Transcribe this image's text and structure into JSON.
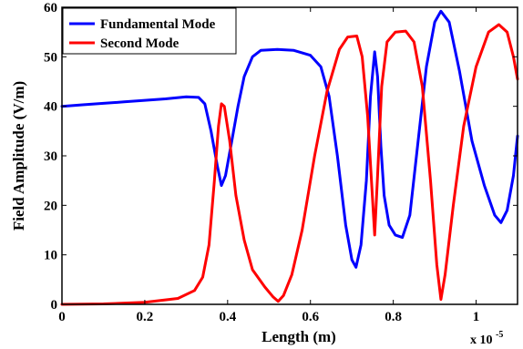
{
  "chart_data": {
    "type": "line",
    "title": "",
    "xlabel": "Length (m)",
    "ylabel": "Field Amplitude (V/m)",
    "x_multiplier": "x 10",
    "x_multiplier_exp": "-5",
    "xlim": [
      0,
      1.1
    ],
    "ylim": [
      0,
      60
    ],
    "x_ticks": [
      0,
      0.2,
      0.4,
      0.6,
      0.8,
      1
    ],
    "x_tick_labels": [
      "0",
      "0.2",
      "0.4",
      "0.6",
      "0.8",
      "1"
    ],
    "y_ticks": [
      0,
      10,
      20,
      30,
      40,
      50,
      60
    ],
    "y_tick_labels": [
      "0",
      "10",
      "20",
      "30",
      "40",
      "50",
      "60"
    ],
    "grid": false,
    "legend_position": "top-left",
    "series": [
      {
        "name": "Fundamental Mode",
        "color": "#0000ff",
        "points": [
          [
            0.0,
            40.0
          ],
          [
            0.05,
            40.3
          ],
          [
            0.1,
            40.6
          ],
          [
            0.15,
            40.9
          ],
          [
            0.2,
            41.2
          ],
          [
            0.25,
            41.5
          ],
          [
            0.3,
            41.9
          ],
          [
            0.33,
            41.8
          ],
          [
            0.345,
            40.5
          ],
          [
            0.36,
            35.0
          ],
          [
            0.375,
            28.0
          ],
          [
            0.385,
            24.0
          ],
          [
            0.395,
            26.0
          ],
          [
            0.41,
            33.0
          ],
          [
            0.425,
            40.0
          ],
          [
            0.44,
            46.0
          ],
          [
            0.46,
            50.0
          ],
          [
            0.48,
            51.3
          ],
          [
            0.52,
            51.5
          ],
          [
            0.56,
            51.3
          ],
          [
            0.6,
            50.3
          ],
          [
            0.625,
            48.0
          ],
          [
            0.645,
            42.0
          ],
          [
            0.665,
            30.0
          ],
          [
            0.685,
            16.0
          ],
          [
            0.7,
            9.0
          ],
          [
            0.71,
            7.5
          ],
          [
            0.722,
            12.0
          ],
          [
            0.735,
            25.0
          ],
          [
            0.745,
            42.0
          ],
          [
            0.755,
            51.0
          ],
          [
            0.762,
            46.0
          ],
          [
            0.77,
            32.0
          ],
          [
            0.778,
            22.0
          ],
          [
            0.79,
            16.0
          ],
          [
            0.805,
            14.0
          ],
          [
            0.822,
            13.5
          ],
          [
            0.84,
            18.0
          ],
          [
            0.86,
            33.0
          ],
          [
            0.88,
            48.0
          ],
          [
            0.9,
            57.0
          ],
          [
            0.915,
            59.2
          ],
          [
            0.935,
            57.0
          ],
          [
            0.96,
            47.0
          ],
          [
            0.99,
            33.0
          ],
          [
            1.02,
            24.0
          ],
          [
            1.045,
            18.0
          ],
          [
            1.06,
            16.5
          ],
          [
            1.075,
            19.0
          ],
          [
            1.09,
            26.0
          ],
          [
            1.1,
            34.0
          ]
        ]
      },
      {
        "name": "Second Mode",
        "color": "#ff0000",
        "points": [
          [
            0.0,
            0.0
          ],
          [
            0.1,
            0.1
          ],
          [
            0.2,
            0.4
          ],
          [
            0.28,
            1.2
          ],
          [
            0.32,
            2.8
          ],
          [
            0.34,
            5.5
          ],
          [
            0.355,
            12.0
          ],
          [
            0.368,
            25.0
          ],
          [
            0.378,
            36.0
          ],
          [
            0.385,
            40.5
          ],
          [
            0.392,
            40.0
          ],
          [
            0.405,
            33.0
          ],
          [
            0.42,
            22.0
          ],
          [
            0.44,
            13.0
          ],
          [
            0.46,
            7.0
          ],
          [
            0.49,
            3.5
          ],
          [
            0.51,
            1.5
          ],
          [
            0.522,
            0.6
          ],
          [
            0.535,
            1.8
          ],
          [
            0.555,
            6.0
          ],
          [
            0.58,
            15.0
          ],
          [
            0.61,
            30.0
          ],
          [
            0.64,
            43.0
          ],
          [
            0.67,
            51.5
          ],
          [
            0.69,
            54.0
          ],
          [
            0.712,
            54.2
          ],
          [
            0.725,
            50.0
          ],
          [
            0.738,
            38.0
          ],
          [
            0.748,
            24.0
          ],
          [
            0.755,
            14.0
          ],
          [
            0.762,
            26.0
          ],
          [
            0.772,
            44.0
          ],
          [
            0.785,
            53.0
          ],
          [
            0.805,
            55.0
          ],
          [
            0.83,
            55.2
          ],
          [
            0.85,
            53.0
          ],
          [
            0.87,
            44.0
          ],
          [
            0.89,
            25.0
          ],
          [
            0.905,
            8.0
          ],
          [
            0.915,
            1.0
          ],
          [
            0.925,
            6.0
          ],
          [
            0.945,
            20.0
          ],
          [
            0.97,
            36.0
          ],
          [
            1.0,
            48.0
          ],
          [
            1.03,
            55.0
          ],
          [
            1.055,
            56.5
          ],
          [
            1.075,
            55.0
          ],
          [
            1.09,
            50.0
          ],
          [
            1.1,
            45.5
          ]
        ]
      }
    ]
  }
}
